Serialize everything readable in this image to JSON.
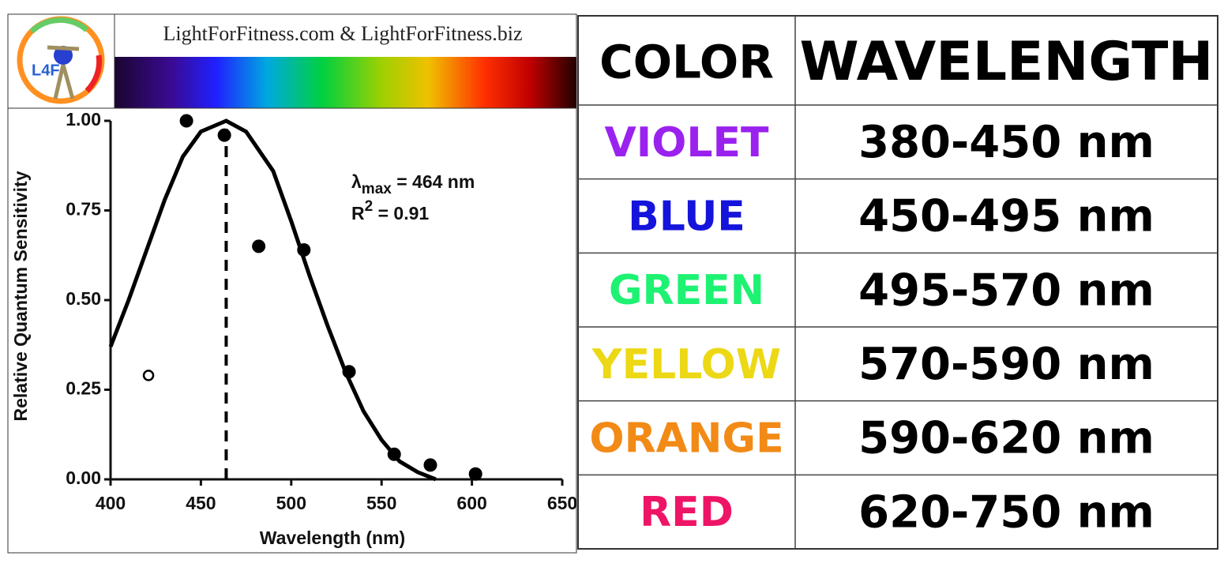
{
  "header": {
    "logo_text": "L4F",
    "title": "LightForFitness.com & LightForFitness.biz"
  },
  "chart_data": {
    "type": "scatter",
    "x_label": "Wavelength (nm)",
    "y_label": "Relative Quantum Sensitivity",
    "xlim": [
      400,
      650
    ],
    "xticks": [
      400,
      450,
      500,
      550,
      600,
      650
    ],
    "ylim": [
      0,
      1
    ],
    "yticks": [
      {
        "value": 0,
        "label": "0.00"
      },
      {
        "value": 0.25,
        "label": "0.25"
      },
      {
        "value": 0.5,
        "label": "0.50"
      },
      {
        "value": 0.75,
        "label": "0.75"
      },
      {
        "value": 1,
        "label": "1.00"
      }
    ],
    "color": "#000000",
    "series": [
      {
        "marker": "open",
        "x": [
          421
        ],
        "values": [
          0.29
        ]
      },
      {
        "marker": "filled",
        "x": [
          442,
          463,
          482,
          507,
          532,
          557,
          577,
          602
        ],
        "values": [
          1.0,
          0.96,
          0.65,
          0.64,
          0.3,
          0.07,
          0.04,
          0.015
        ]
      }
    ],
    "curve": {
      "x": [
        400,
        410,
        420,
        430,
        440,
        450,
        464,
        475,
        490,
        500,
        510,
        520,
        530,
        540,
        550,
        560,
        570,
        580
      ],
      "values": [
        0.37,
        0.5,
        0.64,
        0.78,
        0.9,
        0.97,
        1.0,
        0.97,
        0.86,
        0.72,
        0.57,
        0.43,
        0.3,
        0.19,
        0.11,
        0.05,
        0.02,
        0.0
      ]
    },
    "vline": 464,
    "annotations": [
      {
        "symbol": "λ",
        "subscript": "max",
        "text": " = 464 nm"
      },
      {
        "symbol": "R",
        "superscript": "2",
        "text": " = 0.91"
      }
    ]
  },
  "table": {
    "header": [
      "COLOR",
      "WAVELENGTH"
    ],
    "rows": [
      {
        "color": "#9a22ee",
        "cells": [
          "VIOLET",
          "380-450 nm"
        ]
      },
      {
        "color": "#1414dc",
        "cells": [
          "BLUE",
          "450-495 nm"
        ]
      },
      {
        "color": "#1ef272",
        "cells": [
          "GREEN",
          "495-570 nm"
        ]
      },
      {
        "color": "#ecd814",
        "cells": [
          "YELLOW",
          "570-590 nm"
        ]
      },
      {
        "color": "#f28a16",
        "cells": [
          "ORANGE",
          "590-620 nm"
        ]
      },
      {
        "color": "#ee1466",
        "cells": [
          "RED",
          "620-750 nm"
        ]
      }
    ]
  }
}
